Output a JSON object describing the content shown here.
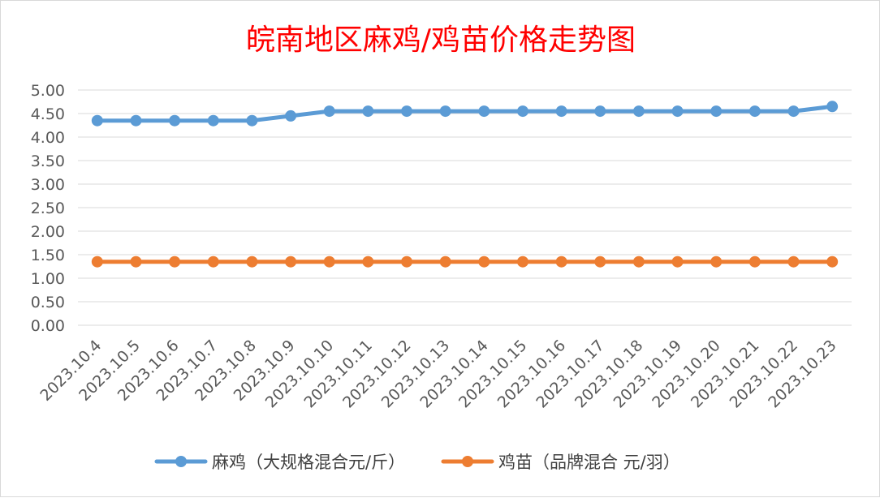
{
  "chart_data": {
    "type": "line",
    "title": "皖南地区麻鸡/鸡苗价格走势图",
    "xlabel": "",
    "ylabel": "",
    "categories": [
      "2023.10.4",
      "2023.10.5",
      "2023.10.6",
      "2023.10.7",
      "2023.10.8",
      "2023.10.9",
      "2023.10.10",
      "2023.10.11",
      "2023.10.12",
      "2023.10.13",
      "2023.10.14",
      "2023.10.15",
      "2023.10.16",
      "2023.10.17",
      "2023.10.18",
      "2023.10.19",
      "2023.10.20",
      "2023.10.21",
      "2023.10.22",
      "2023.10.23"
    ],
    "yticks": [
      "0.00",
      "0.50",
      "1.00",
      "1.50",
      "2.00",
      "2.50",
      "3.00",
      "3.50",
      "4.00",
      "4.50",
      "5.00"
    ],
    "ylim": [
      0,
      5
    ],
    "grid": true,
    "legend_position": "bottom",
    "series": [
      {
        "name": "麻鸡（大规格混合元/斤）",
        "color": "#5b9bd5",
        "values": [
          4.35,
          4.35,
          4.35,
          4.35,
          4.35,
          4.45,
          4.55,
          4.55,
          4.55,
          4.55,
          4.55,
          4.55,
          4.55,
          4.55,
          4.55,
          4.55,
          4.55,
          4.55,
          4.55,
          4.65
        ]
      },
      {
        "name": "鸡苗（品牌混合 元/羽）",
        "color": "#ed7d31",
        "values": [
          1.35,
          1.35,
          1.35,
          1.35,
          1.35,
          1.35,
          1.35,
          1.35,
          1.35,
          1.35,
          1.35,
          1.35,
          1.35,
          1.35,
          1.35,
          1.35,
          1.35,
          1.35,
          1.35,
          1.35
        ]
      }
    ]
  }
}
